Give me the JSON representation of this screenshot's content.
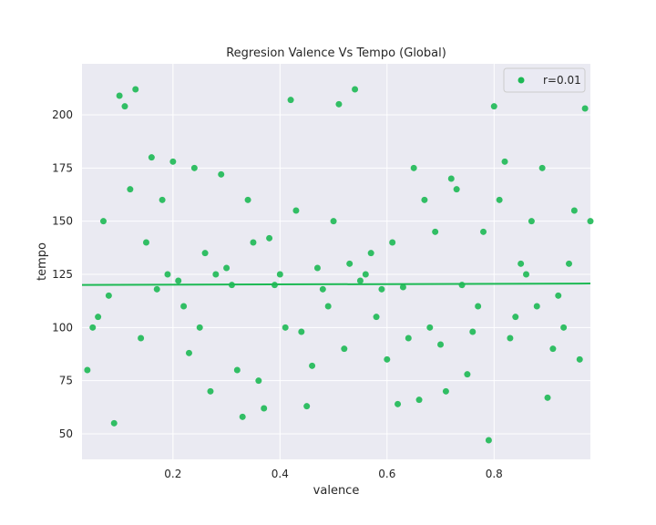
{
  "chart_data": {
    "type": "scatter",
    "title": "Regresion Valence Vs Tempo (Global)",
    "xlabel": "valence",
    "ylabel": "tempo",
    "xlim": [
      0.03,
      0.98
    ],
    "ylim": [
      38,
      224
    ],
    "xticks": [
      0.2,
      0.4,
      0.6,
      0.8
    ],
    "xtick_labels": [
      "0.2",
      "0.4",
      "0.6",
      "0.8"
    ],
    "yticks": [
      50,
      75,
      100,
      125,
      150,
      175,
      200
    ],
    "ytick_labels": [
      "50",
      "75",
      "100",
      "125",
      "150",
      "175",
      "200"
    ],
    "grid": true,
    "legend": {
      "position": "top-right",
      "entries": [
        "r=0.01"
      ]
    },
    "regression_line": {
      "x": [
        0.03,
        0.98
      ],
      "y": [
        120.0,
        120.7
      ]
    },
    "series": [
      {
        "name": "r=0.01",
        "x": [
          0.1,
          0.13,
          0.11,
          0.42,
          0.54,
          0.51,
          0.98,
          0.97,
          0.8,
          0.09,
          0.79,
          0.9,
          0.33,
          0.37,
          0.45,
          0.62,
          0.66,
          0.71,
          0.75,
          0.14,
          0.22,
          0.28,
          0.35,
          0.48,
          0.58,
          0.85,
          0.92,
          0.05,
          0.07,
          0.18,
          0.26,
          0.31,
          0.4,
          0.47,
          0.55,
          0.63,
          0.69,
          0.77,
          0.83,
          0.89,
          0.95,
          0.04,
          0.12,
          0.2,
          0.29,
          0.38,
          0.44,
          0.52,
          0.6,
          0.68,
          0.74,
          0.81,
          0.87,
          0.93,
          0.06,
          0.16,
          0.24,
          0.34,
          0.43,
          0.5,
          0.57,
          0.65,
          0.72,
          0.78,
          0.86,
          0.94,
          0.08,
          0.15,
          0.23,
          0.32,
          0.41,
          0.49,
          0.56,
          0.64,
          0.7,
          0.76,
          0.84,
          0.91,
          0.96,
          0.17,
          0.27,
          0.36,
          0.46,
          0.53,
          0.61,
          0.67,
          0.73,
          0.82,
          0.88,
          0.19,
          0.25,
          0.39,
          0.59,
          0.21,
          0.3
        ],
        "y": [
          209,
          212,
          204,
          207,
          212,
          205,
          150,
          203,
          204,
          55,
          47,
          67,
          58,
          62,
          63,
          64,
          66,
          70,
          78,
          95,
          110,
          125,
          140,
          118,
          105,
          130,
          115,
          100,
          150,
          160,
          135,
          120,
          125,
          128,
          122,
          119,
          145,
          110,
          95,
          175,
          155,
          80,
          165,
          178,
          172,
          142,
          98,
          90,
          85,
          100,
          120,
          160,
          150,
          100,
          105,
          180,
          175,
          160,
          155,
          150,
          135,
          175,
          170,
          145,
          125,
          130,
          115,
          140,
          88,
          80,
          100,
          110,
          125,
          95,
          92,
          98,
          105,
          90,
          85,
          118,
          70,
          75,
          82,
          130,
          140,
          160,
          165,
          178,
          110,
          125,
          100,
          120,
          118,
          122,
          128
        ]
      }
    ]
  }
}
